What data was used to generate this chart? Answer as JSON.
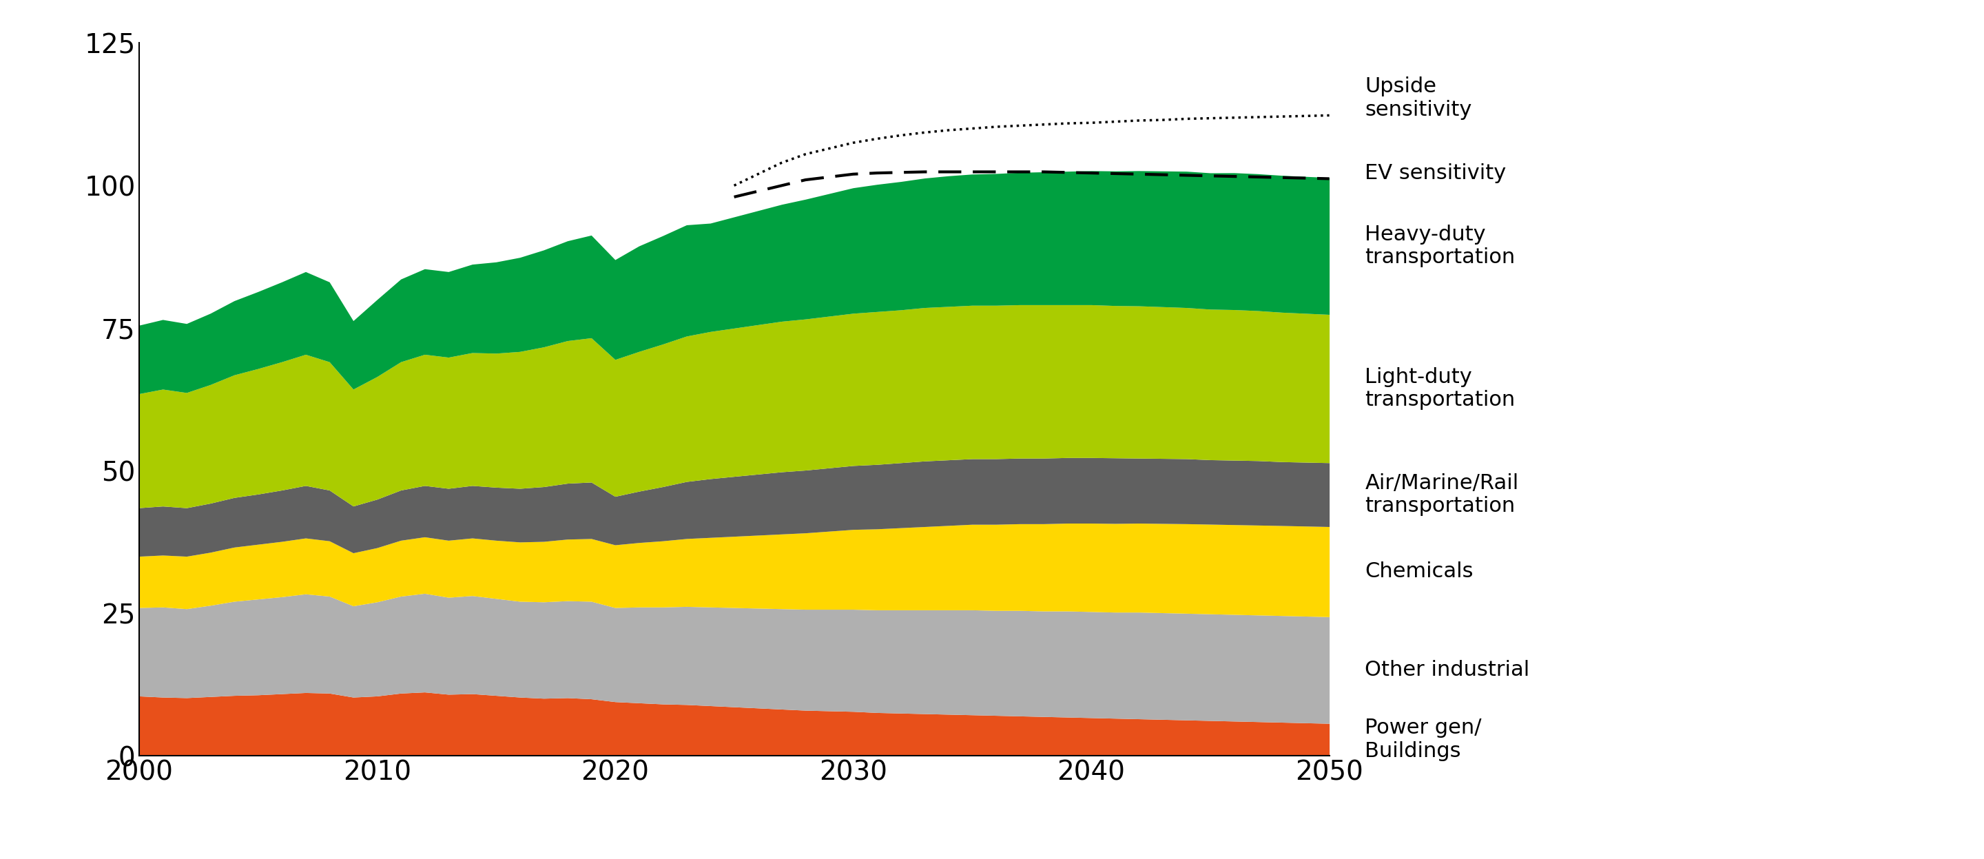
{
  "years": [
    2000,
    2001,
    2002,
    2003,
    2004,
    2005,
    2006,
    2007,
    2008,
    2009,
    2010,
    2011,
    2012,
    2013,
    2014,
    2015,
    2016,
    2017,
    2018,
    2019,
    2020,
    2021,
    2022,
    2023,
    2024,
    2025,
    2026,
    2027,
    2028,
    2029,
    2030,
    2031,
    2032,
    2033,
    2034,
    2035,
    2036,
    2037,
    2038,
    2039,
    2040,
    2041,
    2042,
    2043,
    2044,
    2045,
    2046,
    2047,
    2048,
    2049,
    2050
  ],
  "power_gen": [
    10.5,
    10.3,
    10.2,
    10.4,
    10.6,
    10.7,
    10.9,
    11.1,
    11.0,
    10.3,
    10.5,
    11.0,
    11.2,
    10.8,
    10.9,
    10.6,
    10.3,
    10.1,
    10.2,
    10.0,
    9.5,
    9.3,
    9.1,
    9.0,
    8.8,
    8.6,
    8.4,
    8.2,
    8.0,
    7.9,
    7.8,
    7.6,
    7.5,
    7.4,
    7.3,
    7.2,
    7.1,
    7.0,
    6.9,
    6.8,
    6.7,
    6.6,
    6.5,
    6.4,
    6.3,
    6.2,
    6.1,
    6.0,
    5.9,
    5.8,
    5.7
  ],
  "other_industrial": [
    15.5,
    15.8,
    15.6,
    16.0,
    16.5,
    16.8,
    17.0,
    17.3,
    17.0,
    16.0,
    16.5,
    17.0,
    17.3,
    17.0,
    17.2,
    17.0,
    16.8,
    16.9,
    17.0,
    17.1,
    16.5,
    16.8,
    17.0,
    17.2,
    17.3,
    17.4,
    17.5,
    17.6,
    17.7,
    17.8,
    17.9,
    18.0,
    18.1,
    18.2,
    18.3,
    18.4,
    18.4,
    18.5,
    18.5,
    18.6,
    18.6,
    18.6,
    18.7,
    18.7,
    18.7,
    18.7,
    18.7,
    18.7,
    18.7,
    18.7,
    18.7
  ],
  "chemicals": [
    9.0,
    9.1,
    9.2,
    9.3,
    9.5,
    9.6,
    9.7,
    9.8,
    9.7,
    9.3,
    9.5,
    9.8,
    9.9,
    10.0,
    10.1,
    10.2,
    10.4,
    10.6,
    10.8,
    11.0,
    11.0,
    11.3,
    11.6,
    11.9,
    12.2,
    12.5,
    12.8,
    13.1,
    13.4,
    13.7,
    14.0,
    14.2,
    14.4,
    14.6,
    14.8,
    15.0,
    15.1,
    15.2,
    15.3,
    15.4,
    15.5,
    15.55,
    15.6,
    15.65,
    15.7,
    15.72,
    15.74,
    15.76,
    15.78,
    15.79,
    15.8
  ],
  "air_marine_rail": [
    8.5,
    8.6,
    8.5,
    8.6,
    8.7,
    8.8,
    9.0,
    9.2,
    8.9,
    8.2,
    8.5,
    8.8,
    9.0,
    9.1,
    9.2,
    9.3,
    9.4,
    9.6,
    9.8,
    9.9,
    8.5,
    9.0,
    9.5,
    10.0,
    10.3,
    10.5,
    10.7,
    10.9,
    11.0,
    11.1,
    11.2,
    11.3,
    11.4,
    11.5,
    11.5,
    11.5,
    11.5,
    11.5,
    11.5,
    11.5,
    11.5,
    11.5,
    11.4,
    11.4,
    11.4,
    11.3,
    11.3,
    11.3,
    11.2,
    11.2,
    11.2
  ],
  "light_duty": [
    20.0,
    20.5,
    20.2,
    20.8,
    21.5,
    22.0,
    22.5,
    23.0,
    22.5,
    20.5,
    21.5,
    22.5,
    23.0,
    23.0,
    23.3,
    23.5,
    24.0,
    24.5,
    25.0,
    25.3,
    24.0,
    24.5,
    25.0,
    25.5,
    25.8,
    26.0,
    26.2,
    26.4,
    26.5,
    26.6,
    26.7,
    26.8,
    26.8,
    26.9,
    26.9,
    26.9,
    26.9,
    26.9,
    26.9,
    26.8,
    26.8,
    26.7,
    26.7,
    26.6,
    26.5,
    26.4,
    26.4,
    26.3,
    26.2,
    26.1,
    26.0
  ],
  "heavy_duty": [
    12.0,
    12.2,
    12.1,
    12.5,
    13.0,
    13.5,
    14.0,
    14.5,
    14.0,
    12.0,
    13.5,
    14.5,
    15.0,
    15.0,
    15.5,
    16.0,
    16.5,
    17.0,
    17.5,
    18.0,
    17.5,
    18.5,
    19.0,
    19.5,
    19.0,
    19.5,
    20.0,
    20.5,
    21.0,
    21.5,
    22.0,
    22.3,
    22.5,
    22.7,
    22.9,
    23.0,
    23.1,
    23.2,
    23.3,
    23.4,
    23.5,
    23.6,
    23.7,
    23.8,
    23.9,
    23.9,
    24.0,
    24.0,
    24.0,
    24.0,
    24.0
  ],
  "ev_sensitivity_total": [
    null,
    null,
    null,
    null,
    null,
    null,
    null,
    null,
    null,
    null,
    null,
    null,
    null,
    null,
    null,
    null,
    null,
    null,
    null,
    null,
    null,
    null,
    null,
    null,
    null,
    98.0,
    99.0,
    100.0,
    101.0,
    101.5,
    102.0,
    102.2,
    102.3,
    102.4,
    102.4,
    102.4,
    102.4,
    102.4,
    102.4,
    102.3,
    102.2,
    102.1,
    102.0,
    101.9,
    101.8,
    101.7,
    101.6,
    101.5,
    101.4,
    101.3,
    101.2
  ],
  "upside_sensitivity_total": [
    null,
    null,
    null,
    null,
    null,
    null,
    null,
    null,
    null,
    null,
    null,
    null,
    null,
    null,
    null,
    null,
    null,
    null,
    null,
    null,
    null,
    null,
    null,
    null,
    null,
    100.0,
    102.0,
    104.0,
    105.5,
    106.5,
    107.5,
    108.2,
    108.8,
    109.3,
    109.7,
    110.0,
    110.3,
    110.5,
    110.7,
    110.9,
    111.0,
    111.2,
    111.4,
    111.5,
    111.7,
    111.8,
    111.9,
    112.0,
    112.1,
    112.2,
    112.3
  ],
  "colors": {
    "power_gen": "#E8501A",
    "other_industrial": "#B0B0B0",
    "chemicals": "#FFD700",
    "air_marine_rail": "#606060",
    "light_duty": "#AACC00",
    "heavy_duty": "#00A040"
  },
  "legend_labels": {
    "upside": "Upside\nsensitivity",
    "ev": "EV sensitivity",
    "heavy_duty": "Heavy-duty\ntransportation",
    "light_duty": "Light-duty\ntransportation",
    "air_marine_rail": "Air/Marine/Rail\ntransportation",
    "chemicals": "Chemicals",
    "other_industrial": "Other industrial",
    "power_gen": "Power gen/\nBuildings"
  },
  "ylim": [
    0,
    125
  ],
  "yticks": [
    0,
    25,
    50,
    75,
    100,
    125
  ],
  "xticks": [
    2000,
    2010,
    2020,
    2030,
    2040,
    2050
  ],
  "background_color": "#FFFFFF"
}
